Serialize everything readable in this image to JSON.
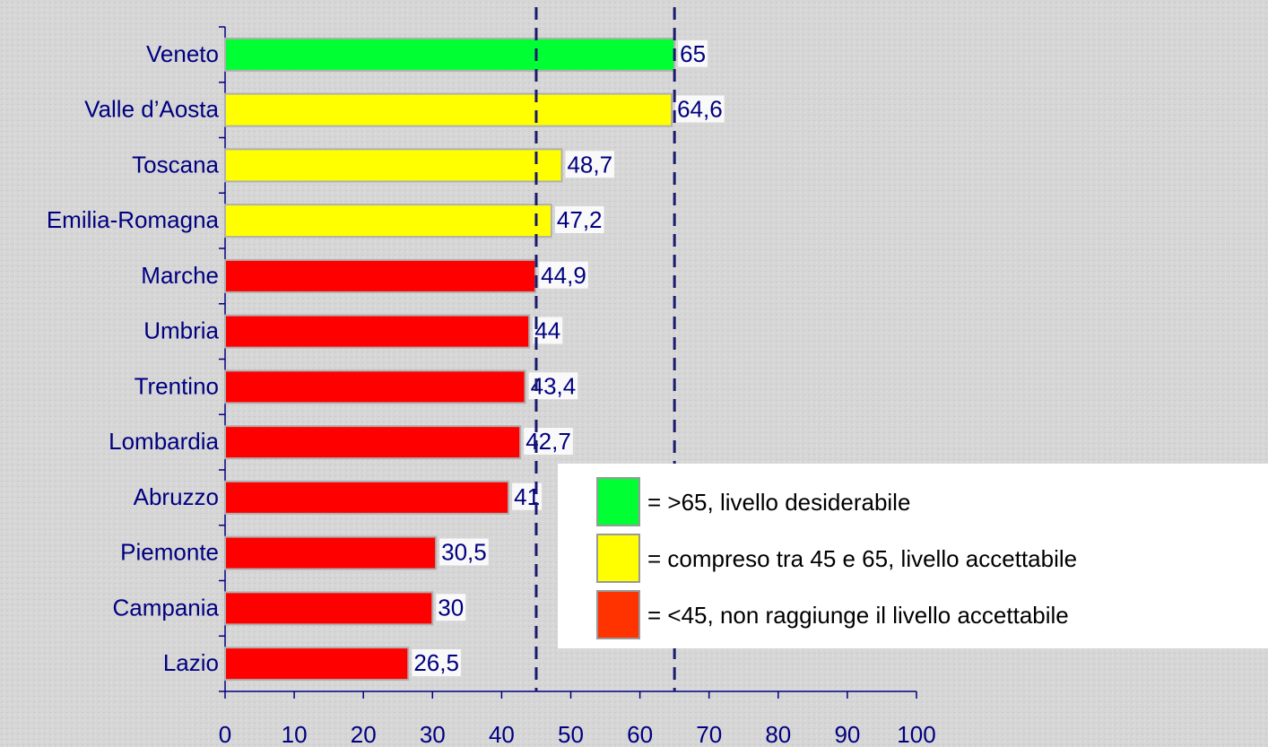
{
  "chart_data": {
    "type": "barh",
    "categories": [
      "Veneto",
      "Valle d’Aosta",
      "Toscana",
      "Emilia-Romagna",
      "Marche",
      "Umbria",
      "Trentino",
      "Lombardia",
      "Abruzzo",
      "Piemonte",
      "Campania",
      "Lazio"
    ],
    "values": [
      65,
      64.6,
      48.7,
      47.2,
      44.9,
      44,
      43.4,
      42.7,
      41,
      30.5,
      30,
      26.5
    ],
    "value_labels": [
      "65",
      "64,6",
      "48,7",
      "47,2",
      "44,9",
      "44",
      "43,4",
      "42,7",
      "41",
      "30,5",
      "30",
      "26,5"
    ],
    "colors": [
      "#00ff33",
      "#ffff00",
      "#ffff00",
      "#ffff00",
      "#ff0000",
      "#ff0000",
      "#ff0000",
      "#ff0000",
      "#ff0000",
      "#ff0000",
      "#ff0000",
      "#ff0000"
    ],
    "xlim": [
      0,
      100
    ],
    "xticks": [
      0,
      10,
      20,
      30,
      40,
      50,
      60,
      70,
      80,
      90,
      100
    ],
    "reference_lines": [
      45,
      65
    ],
    "legend": [
      {
        "color": "#00ff33",
        "label": "= >65, livello desiderabile"
      },
      {
        "color": "#ffff00",
        "label": "= compreso tra 45 e 65, livello accettabile"
      },
      {
        "color": "#ff3300",
        "label": "= <45, non raggiunge il livello accettabile"
      }
    ]
  }
}
